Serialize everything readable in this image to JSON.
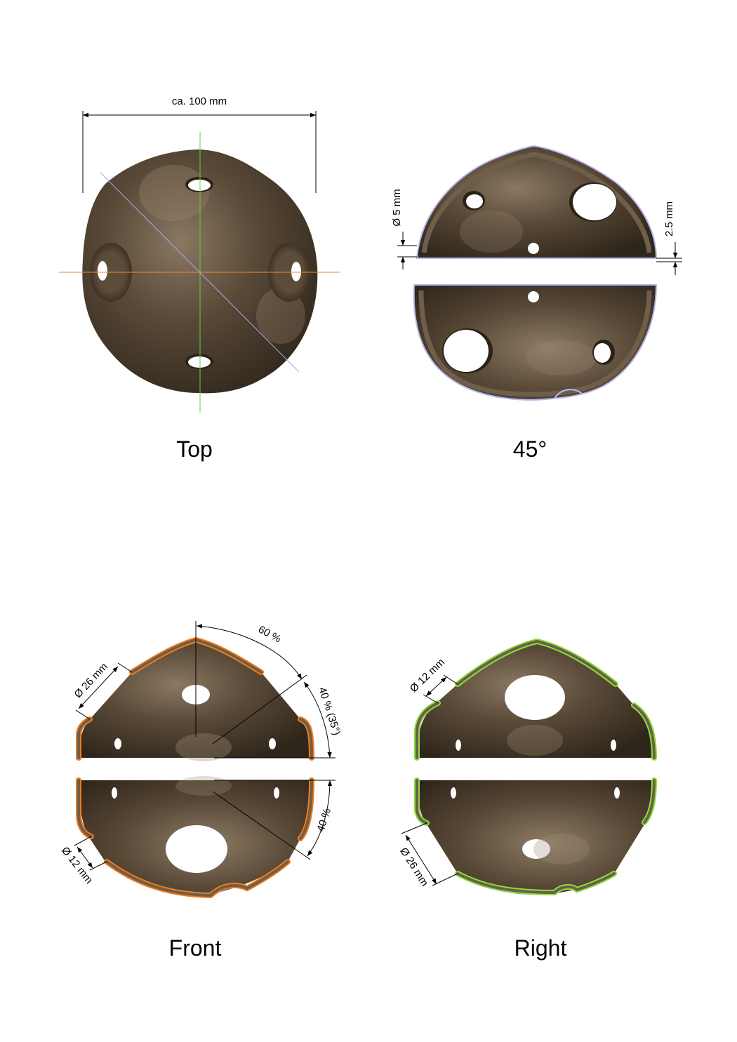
{
  "views": {
    "top": {
      "title": "Top"
    },
    "iso45": {
      "title": "45°"
    },
    "front": {
      "title": "Front"
    },
    "right": {
      "title": "Right"
    }
  },
  "dimensions": {
    "overall_width": "ca. 100 mm",
    "hole_small_45": "Ø 5 mm",
    "gap_45": "2.5 mm",
    "angle_60": "60 %",
    "angle_40_35": "40 % (35°)",
    "angle_40": "40 %",
    "front_hole_large": "Ø 26 mm",
    "front_hole_small": "Ø 12 mm",
    "right_hole_small": "Ø 12 mm",
    "right_hole_large": "Ø 26 mm"
  },
  "colors": {
    "shell_dark": "#3e3326",
    "shell_mid": "#6e5e4a",
    "shell_light": "#a08f78",
    "edge_blue": "#b8b8f0",
    "edge_orange": "#f07a1a",
    "edge_green": "#86e03a",
    "axis_orange": "#f08a30",
    "axis_green": "#60d040",
    "axis_blue": "#a8a8e8"
  }
}
